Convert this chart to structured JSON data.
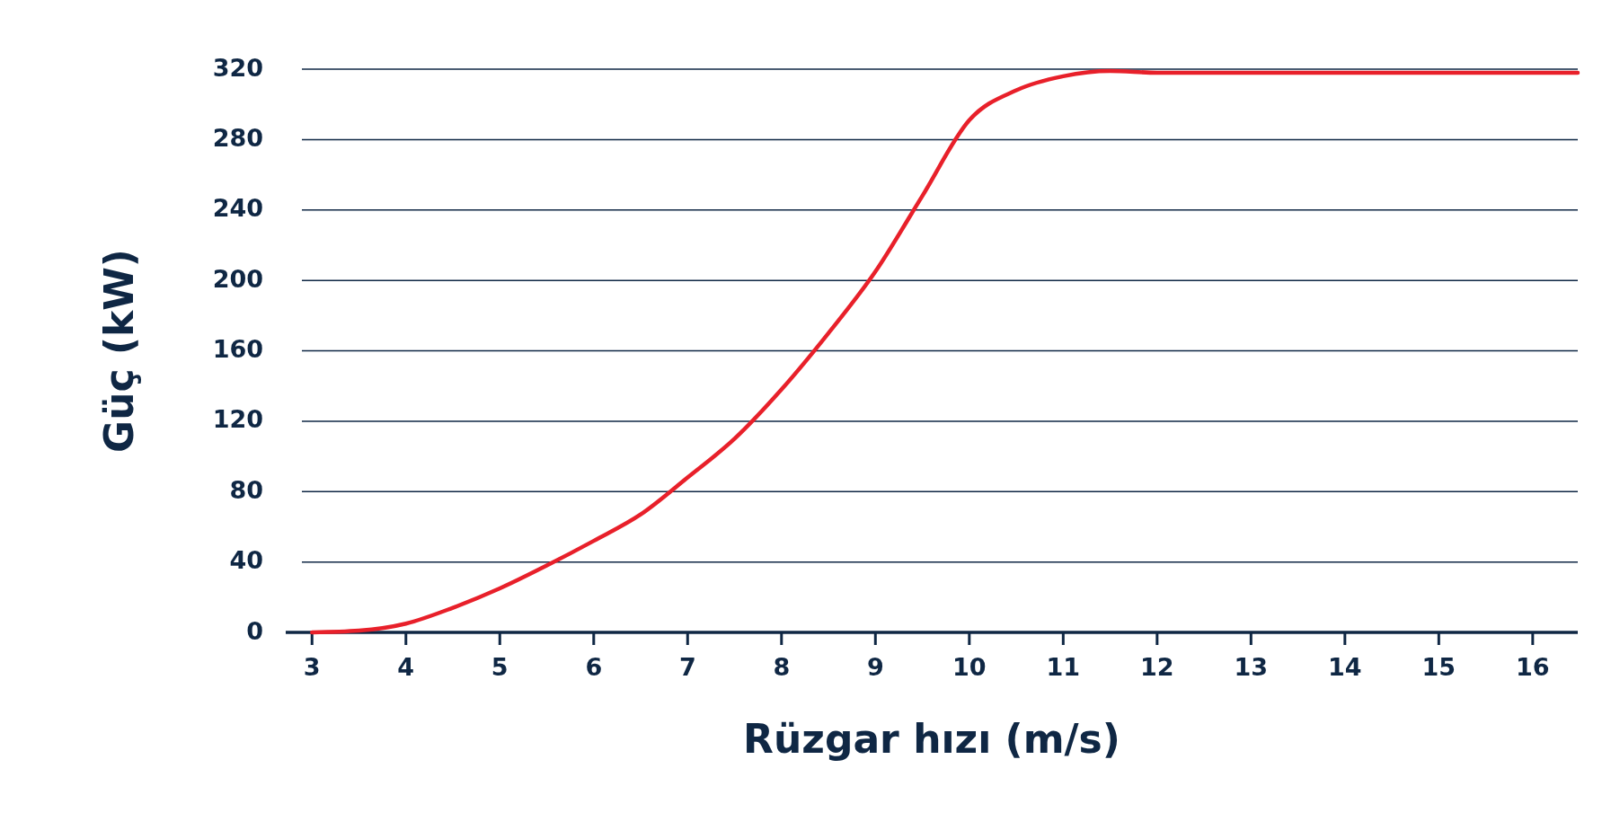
{
  "chart_data": {
    "type": "line",
    "xlabel": "Rüzgar hızı (m/s)",
    "ylabel": "Güç (kW)",
    "xlim": [
      2.72,
      16.48
    ],
    "xticks": [
      3,
      4,
      5,
      6,
      7,
      8,
      9,
      10,
      11,
      12,
      13,
      14,
      15,
      16
    ],
    "ylim": [
      0,
      320
    ],
    "yticks": [
      0,
      40,
      80,
      120,
      160,
      200,
      240,
      280,
      320
    ],
    "grid": "y",
    "line_style": "solid",
    "marker": "none",
    "series": [
      {
        "color": "#e8202a",
        "x": [
          3,
          3.5,
          4,
          4.5,
          5,
          5.5,
          6,
          6.5,
          7,
          7.5,
          8,
          8.5,
          9,
          9.5,
          10,
          10.5,
          11,
          11.5,
          12,
          13,
          14,
          15,
          16,
          16.48
        ],
        "values": [
          0,
          1,
          5,
          14,
          25,
          38,
          52,
          67,
          88,
          110,
          138,
          170,
          205,
          248,
          291,
          308,
          316,
          319,
          318,
          318,
          318,
          318,
          318,
          318
        ]
      }
    ]
  }
}
